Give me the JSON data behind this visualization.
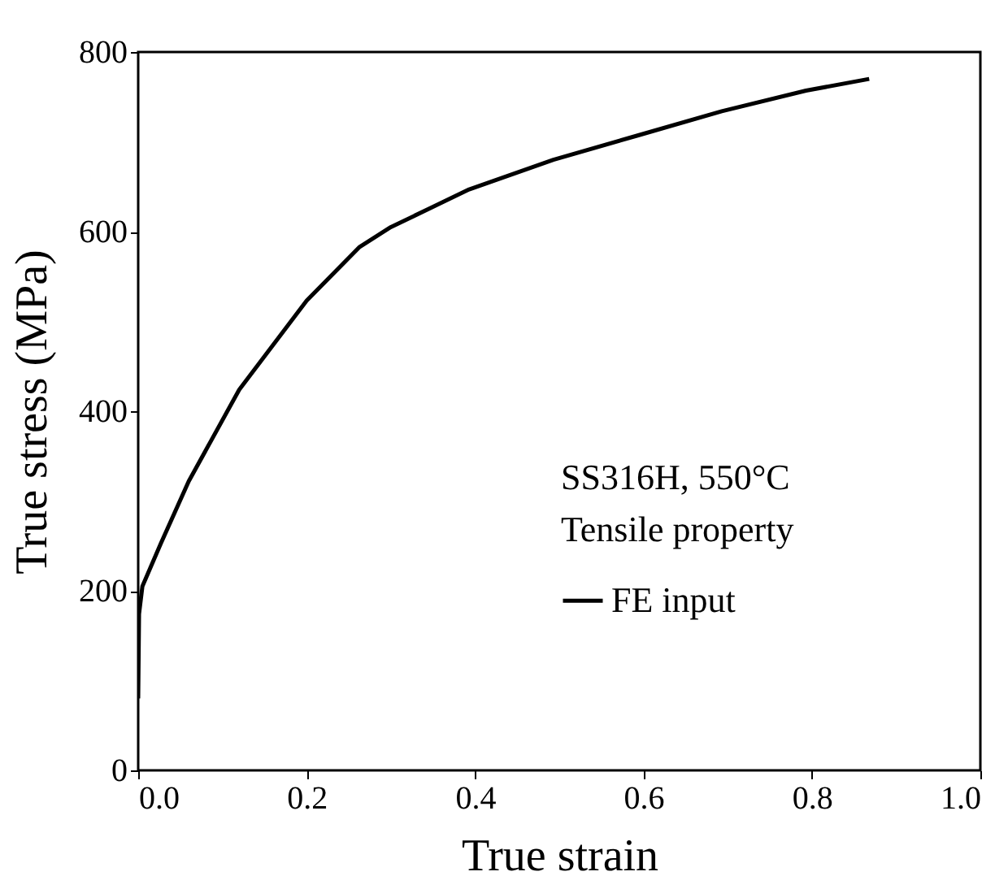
{
  "chart_data": {
    "type": "line",
    "xlabel": "True strain",
    "ylabel": "True stress (MPa)",
    "annotations": [
      "SS316H, 550°C",
      "Tensile property"
    ],
    "series": [
      {
        "name": "FE input",
        "color": "#000000",
        "x": [
          0,
          0.001,
          0.005,
          0.027,
          0.06,
          0.12,
          0.2,
          0.263,
          0.3,
          0.393,
          0.493,
          0.593,
          0.693,
          0.793,
          0.868
        ],
        "values": [
          80,
          174,
          205,
          253,
          322,
          424,
          523,
          583,
          605,
          647,
          680,
          707,
          734,
          757,
          770
        ]
      }
    ],
    "xlim": [
      0,
      1
    ],
    "xticks": [
      {
        "value": 0,
        "label": "0.0"
      },
      0.2,
      0.4,
      0.6,
      0.8,
      {
        "value": 1,
        "label": "1.0"
      }
    ],
    "ylim": [
      0,
      800
    ],
    "yticks": [
      0,
      200,
      400,
      600,
      800
    ],
    "legend": "bottom right",
    "grid": false,
    "marker": "none",
    "line_style": "solid"
  }
}
